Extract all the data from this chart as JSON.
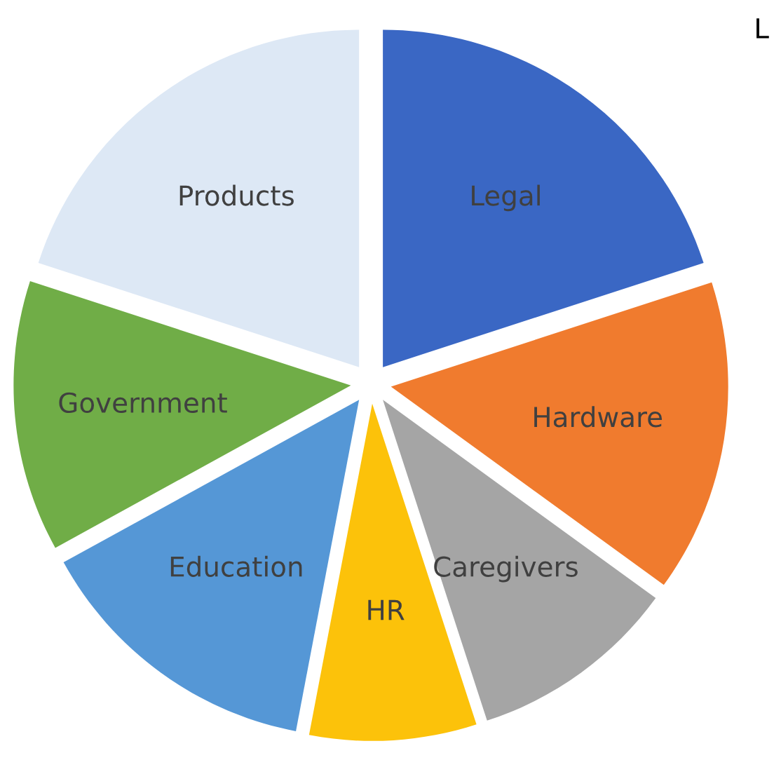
{
  "chart_data": {
    "type": "pie",
    "categories": [
      "Legal",
      "Hardware",
      "Caregivers",
      "HR",
      "Education",
      "Government",
      "Products"
    ],
    "values": [
      20,
      15,
      10,
      8,
      14,
      13,
      20
    ],
    "colors": [
      "#3a67c4",
      "#f07b2e",
      "#a5a5a5",
      "#fcc20a",
      "#5597d6",
      "#70ad47",
      "#dde8f5"
    ],
    "annotations": [
      "L"
    ]
  }
}
